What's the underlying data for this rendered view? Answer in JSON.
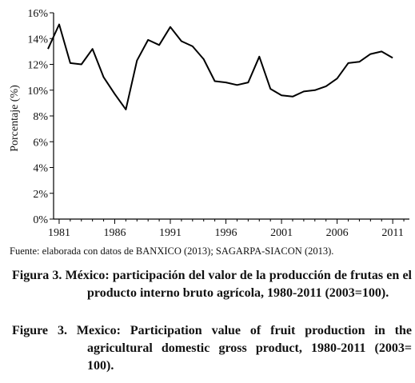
{
  "chart_data": {
    "type": "line",
    "ylabel": "Porcentaje (%)",
    "xlabel": "",
    "title": "",
    "ylim": [
      0,
      16
    ],
    "yticks": [
      "0%",
      "2%",
      "4%",
      "6%",
      "8%",
      "10%",
      "12%",
      "14%",
      "16%"
    ],
    "xtick_labels": [
      "1981",
      "1986",
      "1991",
      "1996",
      "2001",
      "2006",
      "2011"
    ],
    "x": [
      1980,
      1981,
      1982,
      1983,
      1984,
      1985,
      1986,
      1987,
      1988,
      1989,
      1990,
      1991,
      1992,
      1993,
      1994,
      1995,
      1996,
      1997,
      1998,
      1999,
      2000,
      2001,
      2002,
      2003,
      2004,
      2005,
      2006,
      2007,
      2008,
      2009,
      2010,
      2011
    ],
    "series": [
      {
        "values": [
          13.2,
          15.1,
          12.1,
          12.0,
          13.2,
          11.0,
          9.7,
          8.5,
          12.3,
          13.9,
          13.5,
          14.9,
          13.8,
          13.4,
          12.4,
          10.7,
          10.6,
          10.4,
          10.6,
          12.6,
          10.1,
          9.6,
          9.5,
          9.9,
          10.0,
          10.3,
          10.9,
          12.1,
          12.2,
          12.8,
          13.0,
          12.5
        ]
      }
    ],
    "grid": false,
    "line_color": "#000000"
  },
  "source_note": "Fuente: elaborada con datos de BANXICO (2013); SAGARPA-SIACON (2013).",
  "captions": {
    "es_head": "Figura 3.",
    "es_text": "México: participación del valor de la producción de frutas en el producto interno bruto agrícola, 1980-2011 (2003=100).",
    "en_head": "Figure 3.",
    "en_text": "Mexico: Participation value of fruit production in the agricultural domestic gross product, 1980-2011 (2003= 100)."
  }
}
